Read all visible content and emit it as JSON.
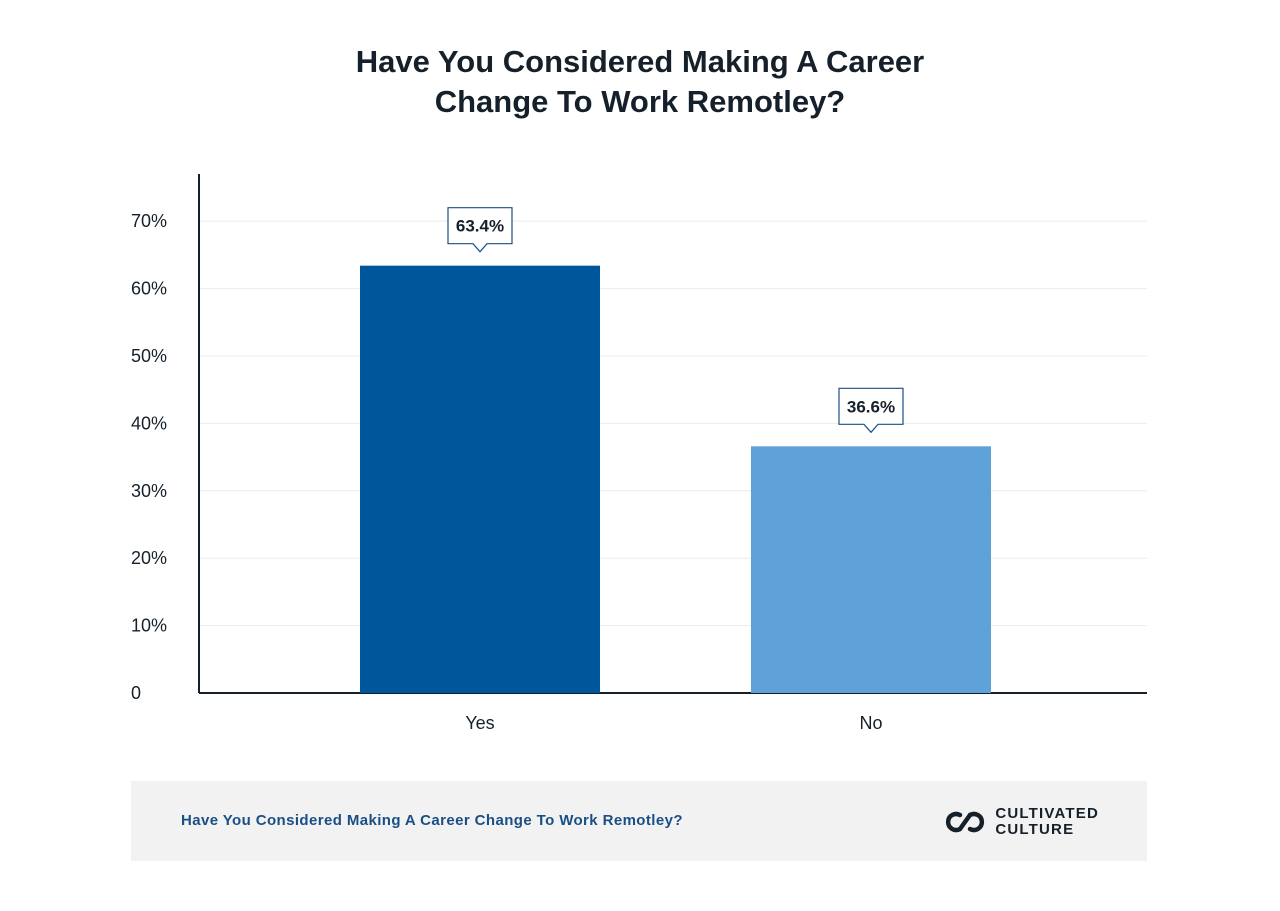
{
  "page": {
    "title_line1": "Have You Considered Making A Career",
    "title_line2": "Change To Work Remotley?"
  },
  "chart_data": {
    "type": "bar",
    "categories": [
      "Yes",
      "No"
    ],
    "values": [
      63.4,
      36.6
    ],
    "value_labels": [
      "63.4%",
      "36.6%"
    ],
    "colors": [
      "#00569b",
      "#5fa2da"
    ],
    "yticks": [
      {
        "value": 0,
        "label": "0"
      },
      {
        "value": 10,
        "label": "10%"
      },
      {
        "value": 20,
        "label": "20%"
      },
      {
        "value": 30,
        "label": "30%"
      },
      {
        "value": 40,
        "label": "40%"
      },
      {
        "value": 50,
        "label": "50%"
      },
      {
        "value": 60,
        "label": "60%"
      },
      {
        "value": 70,
        "label": "70%"
      }
    ],
    "ylim": [
      0,
      77
    ],
    "grid": true,
    "xlabel": "",
    "ylabel": ""
  },
  "footer": {
    "caption": "Have You Considered Making A Career Change To Work Remotley?",
    "brand_line1": "CULTIVATED",
    "brand_line2": "CULTURE",
    "brand_icon": "link-chain-icon"
  }
}
